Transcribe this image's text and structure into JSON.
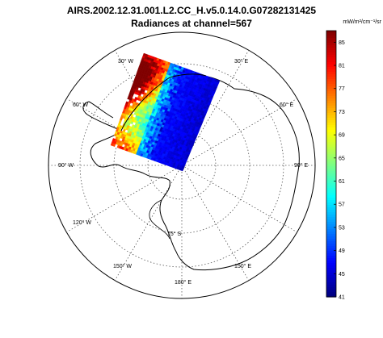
{
  "header": {
    "title_line1": "AIRS.2002.12.31.001.L2.CC_H.v5.0.14.0.G07282131425",
    "title_line2": "Radiances at channel=567"
  },
  "colorbar": {
    "units": "mW/m²/cm⁻¹/sr",
    "ticks": [
      "85",
      "81",
      "77",
      "73",
      "69",
      "65",
      "61",
      "57",
      "53",
      "49",
      "45",
      "41"
    ],
    "min": 41,
    "max": 87
  },
  "map": {
    "projection": "south polar stereographic",
    "latitude_label": "75° S",
    "longitude_labels": {
      "l30w": "30° W",
      "l30e": "30° E",
      "l60w": "60° W",
      "l60e": "60° E",
      "l90w": "90° W",
      "l90e": "90° E",
      "l120w": "120° W",
      "l150w": "150° W",
      "l150e": "150° E",
      "l180": "180° E"
    }
  },
  "colors": {
    "low": "#00008f",
    "mid": "#7fff7f",
    "high": "#8f0000"
  }
}
